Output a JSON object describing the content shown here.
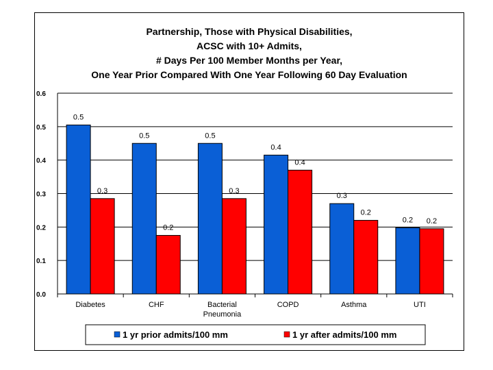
{
  "chart_data": {
    "type": "bar",
    "title_lines": [
      "Partnership, Those with Physical Disabilities,",
      "ACSC with 10+ Admits,",
      "# Days Per 100 Member Months per Year,",
      "One Year Prior Compared With One Year Following 60 Day Evaluation"
    ],
    "categories": [
      [
        "Diabetes"
      ],
      [
        "CHF"
      ],
      [
        "Bacterial",
        "Pneumonia"
      ],
      [
        "COPD"
      ],
      [
        "Asthma"
      ],
      [
        "UTI"
      ]
    ],
    "series": [
      {
        "name": "1 yr prior admits/100 mm",
        "color": "#0a5fd6",
        "values": [
          0.505,
          0.45,
          0.45,
          0.415,
          0.27,
          0.198
        ],
        "labels": [
          "0.5",
          "0.5",
          "0.5",
          "0.4",
          "0.3",
          "0.2"
        ]
      },
      {
        "name": "1 yr after admits/100 mm",
        "color": "#ff0000",
        "values": [
          0.285,
          0.175,
          0.285,
          0.37,
          0.22,
          0.195
        ],
        "labels": [
          "0.3",
          "0.2",
          "0.3",
          "0.4",
          "0.2",
          "0.2"
        ]
      }
    ],
    "yticks": [
      "0.0",
      "0.1",
      "0.2",
      "0.3",
      "0.4",
      "0.5",
      "0.6"
    ],
    "ylim": [
      0,
      0.6
    ],
    "grid": true,
    "legend_position": "bottom"
  }
}
